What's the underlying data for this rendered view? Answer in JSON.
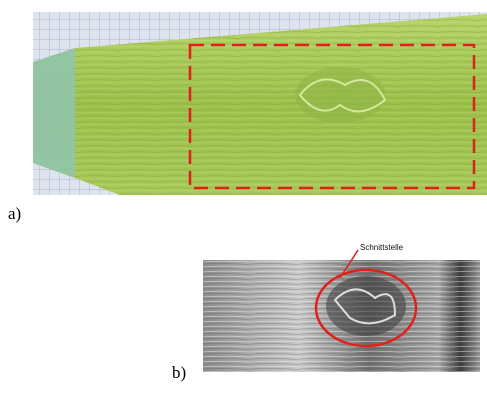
{
  "panels": [
    {
      "label": "a)"
    },
    {
      "label": "b)",
      "annotation": "Schnittstelle"
    }
  ]
}
